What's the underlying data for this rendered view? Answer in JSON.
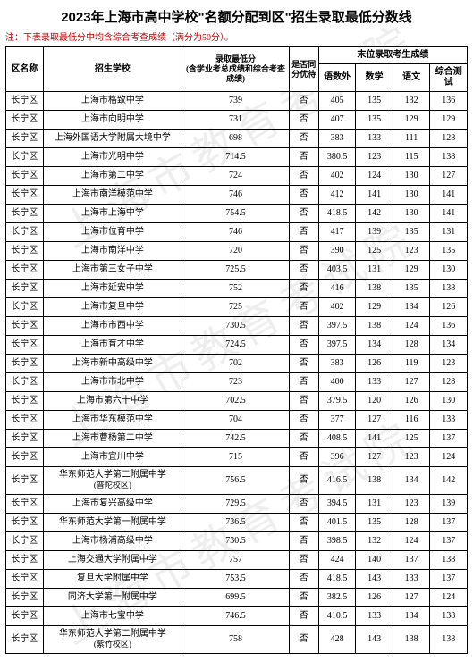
{
  "title": "2023年上海市高中学校\"名额分配到区\"招生录取最低分数线",
  "note": "注：下表录取最低分中均含综合考查成绩（满分为50分）。",
  "watermark": "上海市教育考试院",
  "headers": {
    "district": "区名称",
    "school": "招生学校",
    "score": "录取最低分\n(含学业考总成绩和综合考查成绩)",
    "same": "是否同分优待",
    "last_group": "末位录取考生成绩",
    "sub1": "语数外",
    "sub2": "数学",
    "sub3": "语文",
    "sub4": "综合测试"
  },
  "rows": [
    {
      "district": "长宁区",
      "school": "上海市格致中学",
      "score": "739",
      "same": "否",
      "s1": "405",
      "s2": "135",
      "s3": "132",
      "s4": "136"
    },
    {
      "district": "长宁区",
      "school": "上海市向明中学",
      "score": "731",
      "same": "否",
      "s1": "407",
      "s2": "135",
      "s3": "129",
      "s4": "129"
    },
    {
      "district": "长宁区",
      "school": "上海外国语大学附属大境中学",
      "score": "698",
      "same": "否",
      "s1": "383",
      "s2": "133",
      "s3": "111",
      "s4": "128"
    },
    {
      "district": "长宁区",
      "school": "上海市光明中学",
      "score": "714.5",
      "same": "否",
      "s1": "380.5",
      "s2": "123",
      "s3": "115",
      "s4": "138"
    },
    {
      "district": "长宁区",
      "school": "上海市第二中学",
      "score": "724",
      "same": "否",
      "s1": "402",
      "s2": "124",
      "s3": "130",
      "s4": "127"
    },
    {
      "district": "长宁区",
      "school": "上海市南洋模范中学",
      "score": "746",
      "same": "否",
      "s1": "412",
      "s2": "141",
      "s3": "130",
      "s4": "141"
    },
    {
      "district": "长宁区",
      "school": "上海市上海中学",
      "score": "754.5",
      "same": "否",
      "s1": "418.5",
      "s2": "142",
      "s3": "130",
      "s4": "141"
    },
    {
      "district": "长宁区",
      "school": "上海市位育中学",
      "score": "746",
      "same": "否",
      "s1": "417",
      "s2": "139",
      "s3": "135",
      "s4": "131"
    },
    {
      "district": "长宁区",
      "school": "上海市南洋中学",
      "score": "720",
      "same": "否",
      "s1": "390",
      "s2": "125",
      "s3": "123",
      "s4": "135"
    },
    {
      "district": "长宁区",
      "school": "上海市第三女子中学",
      "score": "725.5",
      "same": "否",
      "s1": "403.5",
      "s2": "131",
      "s3": "129",
      "s4": "130"
    },
    {
      "district": "长宁区",
      "school": "上海市延安中学",
      "score": "752",
      "same": "否",
      "s1": "416",
      "s2": "138",
      "s3": "135",
      "s4": "138"
    },
    {
      "district": "长宁区",
      "school": "上海市复旦中学",
      "score": "725",
      "same": "否",
      "s1": "402",
      "s2": "129",
      "s3": "134",
      "s4": "126"
    },
    {
      "district": "长宁区",
      "school": "上海市市西中学",
      "score": "730.5",
      "same": "否",
      "s1": "397.5",
      "s2": "138",
      "s3": "124",
      "s4": "136"
    },
    {
      "district": "长宁区",
      "school": "上海市育才中学",
      "score": "724.5",
      "same": "否",
      "s1": "397.5",
      "s2": "134",
      "s3": "128",
      "s4": "134"
    },
    {
      "district": "长宁区",
      "school": "上海市新中高级中学",
      "score": "702",
      "same": "否",
      "s1": "383",
      "s2": "126",
      "s3": "119",
      "s4": "123"
    },
    {
      "district": "长宁区",
      "school": "上海市市北中学",
      "score": "723",
      "same": "否",
      "s1": "400",
      "s2": "133",
      "s3": "127",
      "s4": "128"
    },
    {
      "district": "长宁区",
      "school": "上海市第六十中学",
      "score": "702.5",
      "same": "否",
      "s1": "379.5",
      "s2": "120",
      "s3": "126",
      "s4": "130"
    },
    {
      "district": "长宁区",
      "school": "上海市华东模范中学",
      "score": "704",
      "same": "否",
      "s1": "377",
      "s2": "127",
      "s3": "116",
      "s4": "133"
    },
    {
      "district": "长宁区",
      "school": "上海市曹杨第二中学",
      "score": "742.5",
      "same": "否",
      "s1": "408.5",
      "s2": "141",
      "s3": "125",
      "s4": "137"
    },
    {
      "district": "长宁区",
      "school": "上海市宜川中学",
      "score": "715",
      "same": "否",
      "s1": "396",
      "s2": "127",
      "s3": "123",
      "s4": "124"
    },
    {
      "district": "长宁区",
      "school": "华东师范大学第二附属中学\n(普陀校区)",
      "score": "756.5",
      "same": "否",
      "s1": "416.5",
      "s2": "138",
      "s3": "134",
      "s4": "142"
    },
    {
      "district": "长宁区",
      "school": "上海市复兴高级中学",
      "score": "729.5",
      "same": "否",
      "s1": "394.5",
      "s2": "131",
      "s3": "123",
      "s4": "139"
    },
    {
      "district": "长宁区",
      "school": "华东师范大学第一附属中学",
      "score": "736.5",
      "same": "否",
      "s1": "401.5",
      "s2": "135",
      "s3": "128",
      "s4": "137"
    },
    {
      "district": "长宁区",
      "school": "上海市杨浦高级中学",
      "score": "730.5",
      "same": "否",
      "s1": "398.5",
      "s2": "132",
      "s3": "124",
      "s4": "137"
    },
    {
      "district": "长宁区",
      "school": "上海交通大学附属中学",
      "score": "757",
      "same": "否",
      "s1": "424",
      "s2": "140",
      "s3": "137",
      "s4": "138"
    },
    {
      "district": "长宁区",
      "school": "复旦大学附属中学",
      "score": "753.5",
      "same": "否",
      "s1": "418.5",
      "s2": "143",
      "s3": "133",
      "s4": "137"
    },
    {
      "district": "长宁区",
      "school": "同济大学第一附属中学",
      "score": "699.5",
      "same": "否",
      "s1": "382.5",
      "s2": "126",
      "s3": "127",
      "s4": "124"
    },
    {
      "district": "长宁区",
      "school": "上海市七宝中学",
      "score": "746.5",
      "same": "否",
      "s1": "410.5",
      "s2": "133",
      "s3": "134",
      "s4": "138"
    },
    {
      "district": "长宁区",
      "school": "华东师范大学第二附属中学\n(紫竹校区)",
      "score": "758",
      "same": "否",
      "s1": "428",
      "s2": "143",
      "s3": "138",
      "s4": "138"
    }
  ]
}
